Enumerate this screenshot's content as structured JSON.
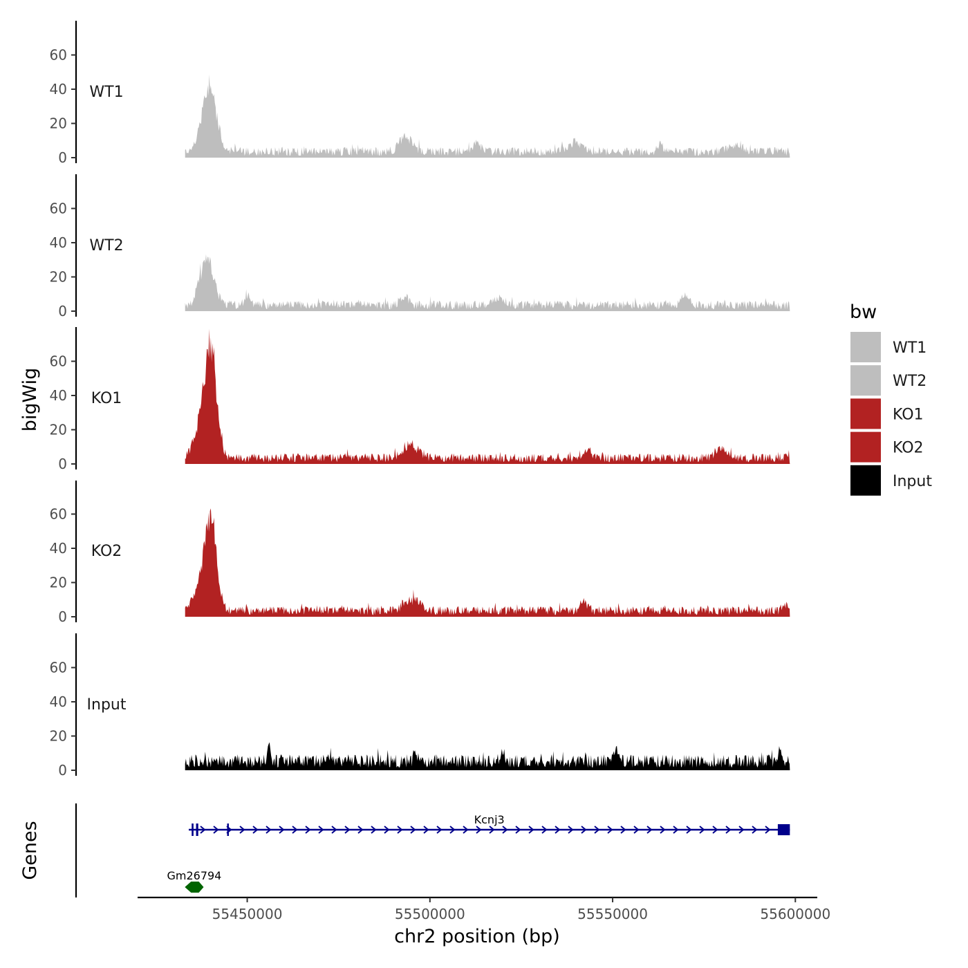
{
  "chart_data": {
    "type": "area",
    "ylabel": "bigWig",
    "xlabel": "chr2 position (bp)",
    "genes_label": "Genes",
    "ylim": [
      0,
      80
    ],
    "y_ticks": [
      "0",
      "20",
      "40",
      "60"
    ],
    "xlim": [
      55420000,
      55606000
    ],
    "data_range": [
      55433000,
      55598500
    ],
    "x_ticks": [
      {
        "value": 55450000,
        "label": "55450000"
      },
      {
        "value": 55500000,
        "label": "55500000"
      },
      {
        "value": 55550000,
        "label": "55550000"
      },
      {
        "value": 55600000,
        "label": "55600000"
      }
    ],
    "legend": {
      "title": "bw",
      "entries": [
        {
          "label": "WT1",
          "color": "#bebebe"
        },
        {
          "label": "WT2",
          "color": "#bebebe"
        },
        {
          "label": "KO1",
          "color": "#b22222"
        },
        {
          "label": "KO2",
          "color": "#b22222"
        },
        {
          "label": "Input",
          "color": "#000000"
        }
      ]
    },
    "series": [
      {
        "name": "WT1",
        "color": "#bebebe",
        "baseline": 4,
        "peaks": [
          {
            "x": 55439500,
            "height": 44,
            "width": 2800
          },
          {
            "x": 55493500,
            "height": 10,
            "width": 2500
          },
          {
            "x": 55513000,
            "height": 5,
            "width": 1500
          },
          {
            "x": 55540000,
            "height": 6,
            "width": 3000
          },
          {
            "x": 55563000,
            "height": 5,
            "width": 1000
          },
          {
            "x": 55584000,
            "height": 5,
            "width": 2500
          }
        ]
      },
      {
        "name": "WT2",
        "color": "#bebebe",
        "baseline": 4,
        "peaks": [
          {
            "x": 55439000,
            "height": 34,
            "width": 2600
          },
          {
            "x": 55450000,
            "height": 8,
            "width": 1000
          },
          {
            "x": 55493000,
            "height": 6,
            "width": 1500
          },
          {
            "x": 55519000,
            "height": 5,
            "width": 2000
          },
          {
            "x": 55570000,
            "height": 6,
            "width": 1500
          }
        ]
      },
      {
        "name": "KO1",
        "color": "#b22222",
        "baseline": 4,
        "peaks": [
          {
            "x": 55440000,
            "height": 75,
            "width": 2300
          },
          {
            "x": 55437000,
            "height": 18,
            "width": 2500
          },
          {
            "x": 55495000,
            "height": 9,
            "width": 3000
          },
          {
            "x": 55543000,
            "height": 6,
            "width": 1500
          },
          {
            "x": 55580000,
            "height": 7,
            "width": 2500
          }
        ]
      },
      {
        "name": "KO2",
        "color": "#b22222",
        "baseline": 4,
        "peaks": [
          {
            "x": 55440000,
            "height": 60,
            "width": 2300
          },
          {
            "x": 55437000,
            "height": 15,
            "width": 2500
          },
          {
            "x": 55495000,
            "height": 8,
            "width": 3000
          },
          {
            "x": 55542000,
            "height": 6,
            "width": 1500
          },
          {
            "x": 55597000,
            "height": 5,
            "width": 800
          }
        ]
      },
      {
        "name": "Input",
        "color": "#000000",
        "baseline": 6,
        "peaks": [
          {
            "x": 55456000,
            "height": 9,
            "width": 600
          },
          {
            "x": 55496000,
            "height": 8,
            "width": 600
          },
          {
            "x": 55520000,
            "height": 9,
            "width": 800
          },
          {
            "x": 55551000,
            "height": 9,
            "width": 800
          },
          {
            "x": 55596000,
            "height": 7,
            "width": 800
          }
        ]
      }
    ],
    "genes": [
      {
        "name": "Gm26794",
        "start": 55433500,
        "end": 55437500,
        "strand": "-",
        "color": "#006400",
        "row": 2
      },
      {
        "name": "Kcnj3",
        "start": 55434000,
        "end": 55598500,
        "strand": "+",
        "color": "#00008b",
        "row": 1,
        "exons": [
          {
            "start": 55434800,
            "end": 55435300
          },
          {
            "start": 55436000,
            "end": 55436600
          },
          {
            "start": 55444500,
            "end": 55444700
          },
          {
            "start": 55595200,
            "end": 55598500
          }
        ]
      }
    ]
  }
}
